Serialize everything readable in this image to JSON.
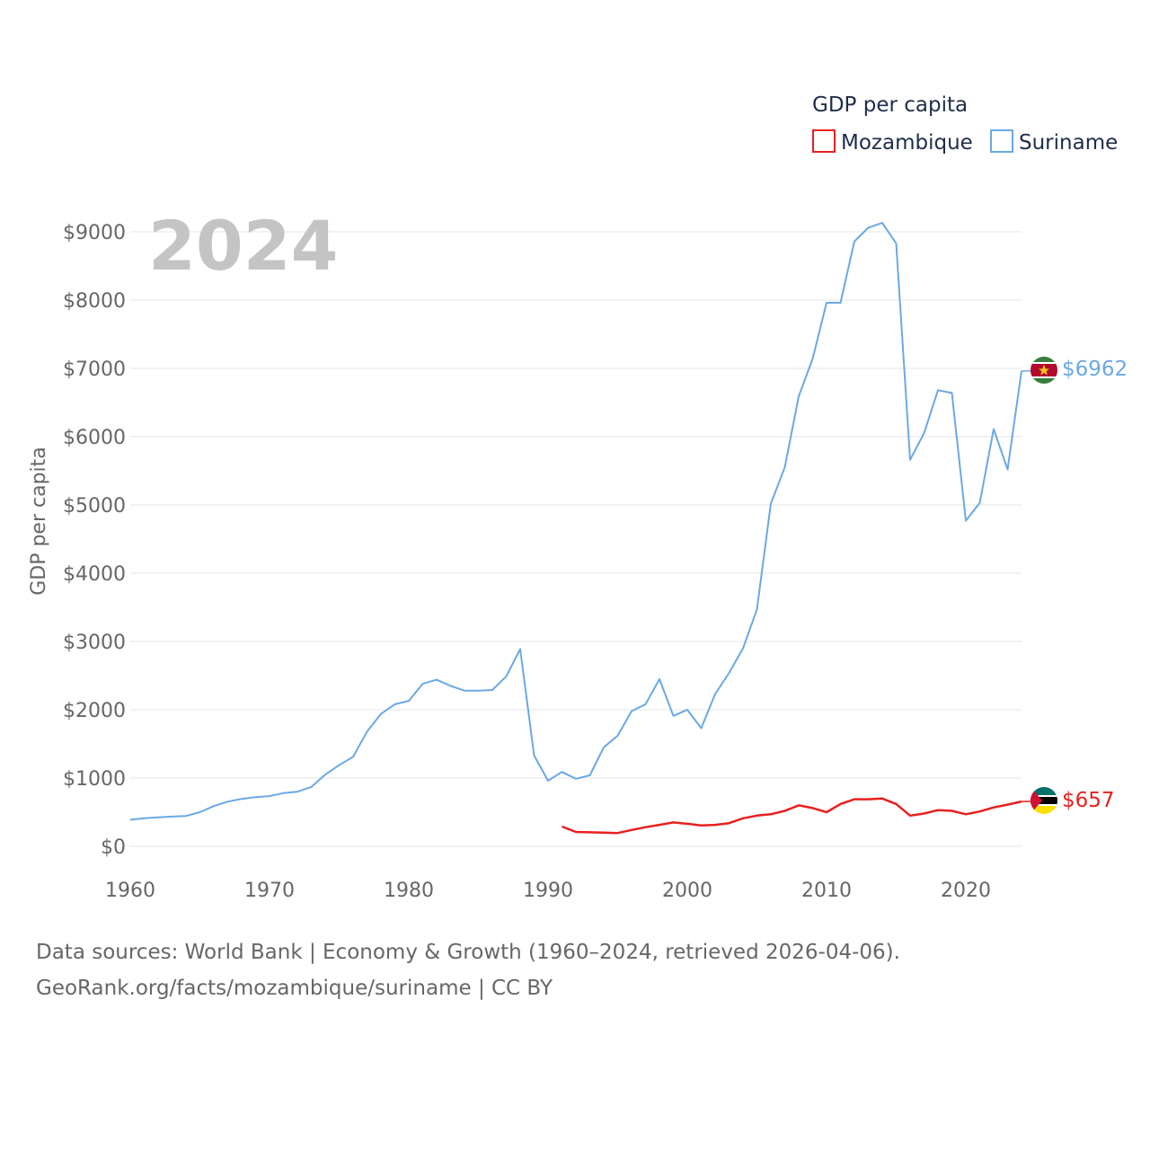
{
  "legend": {
    "title": "GDP per capita",
    "items": [
      {
        "label": "Mozambique",
        "color": "#e8201f"
      },
      {
        "label": "Suriname",
        "color": "#6aa8e6"
      }
    ]
  },
  "year_label": "2024",
  "source": {
    "line1": "Data sources: World Bank | Economy & Growth (1960–2024, retrieved 2026-04-06).",
    "line2": "GeoRank.org/facts/mozambique/suriname | CC BY"
  },
  "chart_data": {
    "type": "line",
    "title": "GDP per capita",
    "xlabel": "",
    "ylabel": "GDP per capita",
    "xlim": [
      1960,
      2024
    ],
    "ylim": [
      0,
      9000
    ],
    "x_ticks": [
      "1960",
      "1970",
      "1980",
      "1990",
      "2000",
      "2010",
      "2020"
    ],
    "y_ticks": [
      "$0",
      "$1000",
      "$2000",
      "$3000",
      "$4000",
      "$5000",
      "$6000",
      "$7000",
      "$8000",
      "$9000"
    ],
    "series": [
      {
        "name": "Suriname",
        "color": "#6aa8e6",
        "end_label": "$6962",
        "x": [
          1960,
          1961,
          1962,
          1963,
          1964,
          1965,
          1966,
          1967,
          1968,
          1969,
          1970,
          1971,
          1972,
          1973,
          1974,
          1975,
          1976,
          1977,
          1978,
          1979,
          1980,
          1981,
          1982,
          1983,
          1984,
          1985,
          1986,
          1987,
          1988,
          1989,
          1990,
          1991,
          1992,
          1993,
          1994,
          1995,
          1996,
          1997,
          1998,
          1999,
          2000,
          2001,
          2002,
          2003,
          2004,
          2005,
          2006,
          2007,
          2008,
          2009,
          2010,
          2011,
          2012,
          2013,
          2014,
          2015,
          2016,
          2017,
          2018,
          2019,
          2020,
          2021,
          2022,
          2023,
          2024
        ],
        "values": [
          390,
          410,
          425,
          435,
          445,
          500,
          590,
          655,
          695,
          720,
          735,
          780,
          800,
          870,
          1050,
          1190,
          1310,
          1680,
          1940,
          2080,
          2130,
          2380,
          2440,
          2350,
          2280,
          2280,
          2290,
          2490,
          2890,
          1330,
          960,
          1090,
          990,
          1040,
          1450,
          1620,
          1980,
          2080,
          2450,
          1910,
          2000,
          1730,
          2230,
          2540,
          2900,
          3470,
          5020,
          5550,
          6590,
          7140,
          7960,
          7960,
          8860,
          9060,
          9130,
          8830,
          5660,
          6050,
          6680,
          6640,
          4770,
          5030,
          6110,
          5520,
          6962
        ]
      },
      {
        "name": "Mozambique",
        "color": "#e8201f",
        "end_label": "$657",
        "x": [
          1991,
          1992,
          1993,
          1994,
          1995,
          1996,
          1997,
          1998,
          1999,
          2000,
          2001,
          2002,
          2003,
          2004,
          2005,
          2006,
          2007,
          2008,
          2009,
          2010,
          2011,
          2012,
          2013,
          2014,
          2015,
          2016,
          2017,
          2018,
          2019,
          2020,
          2021,
          2022,
          2023,
          2024
        ],
        "values": [
          290,
          210,
          205,
          200,
          195,
          240,
          280,
          315,
          350,
          330,
          305,
          315,
          340,
          410,
          450,
          470,
          520,
          600,
          560,
          500,
          620,
          690,
          690,
          700,
          620,
          450,
          480,
          530,
          520,
          470,
          510,
          570,
          610,
          657
        ]
      }
    ]
  }
}
